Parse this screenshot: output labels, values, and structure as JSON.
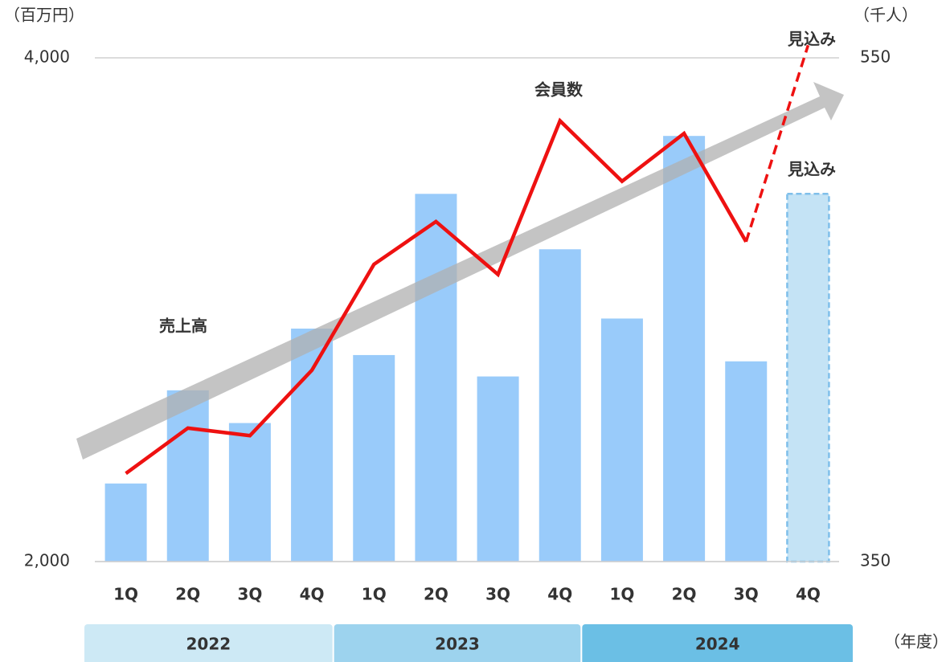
{
  "chart_data": {
    "type": "combo",
    "y_label": "（百万円）",
    "y2_label": "（千人）",
    "group_label": "（年度）",
    "categories": [
      "1Q",
      "2Q",
      "3Q",
      "4Q",
      "1Q",
      "2Q",
      "3Q",
      "4Q",
      "1Q",
      "2Q",
      "3Q",
      "4Q"
    ],
    "groups": [
      "2022",
      "2023",
      "2024"
    ],
    "group_colors": [
      "#cde9f5",
      "#9dd3ee",
      "#6bbfe5"
    ],
    "ylim": [
      2000,
      4000
    ],
    "yticks": [
      {
        "value": 2000,
        "label": "2,000"
      },
      {
        "value": 4000,
        "label": "4,000"
      }
    ],
    "y2lim": [
      350,
      550
    ],
    "y2ticks": [
      350,
      550
    ],
    "series": [
      {
        "name": "売上高",
        "type": "bar",
        "color": "#99cbfa",
        "values": [
          2310,
          2680,
          2550,
          2925,
          2820,
          3460,
          2735,
          3240,
          2965,
          3690,
          2795,
          null
        ]
      },
      {
        "name": "見込み",
        "type": "bar",
        "color": "#c4e3f5",
        "dashed": true,
        "values": [
          null,
          null,
          null,
          null,
          null,
          null,
          null,
          null,
          null,
          null,
          null,
          3460
        ]
      },
      {
        "name": "会員数",
        "type": "line",
        "axis": "y2",
        "color": "#ee1111",
        "values": [
          385,
          403,
          400,
          426,
          468,
          485,
          464,
          525,
          501,
          520,
          477,
          null
        ]
      },
      {
        "name": "見込み",
        "type": "line",
        "axis": "y2",
        "color": "#ee1111",
        "dashed": true,
        "values": [
          null,
          null,
          null,
          null,
          null,
          null,
          null,
          null,
          null,
          null,
          null,
          555
        ]
      }
    ]
  }
}
